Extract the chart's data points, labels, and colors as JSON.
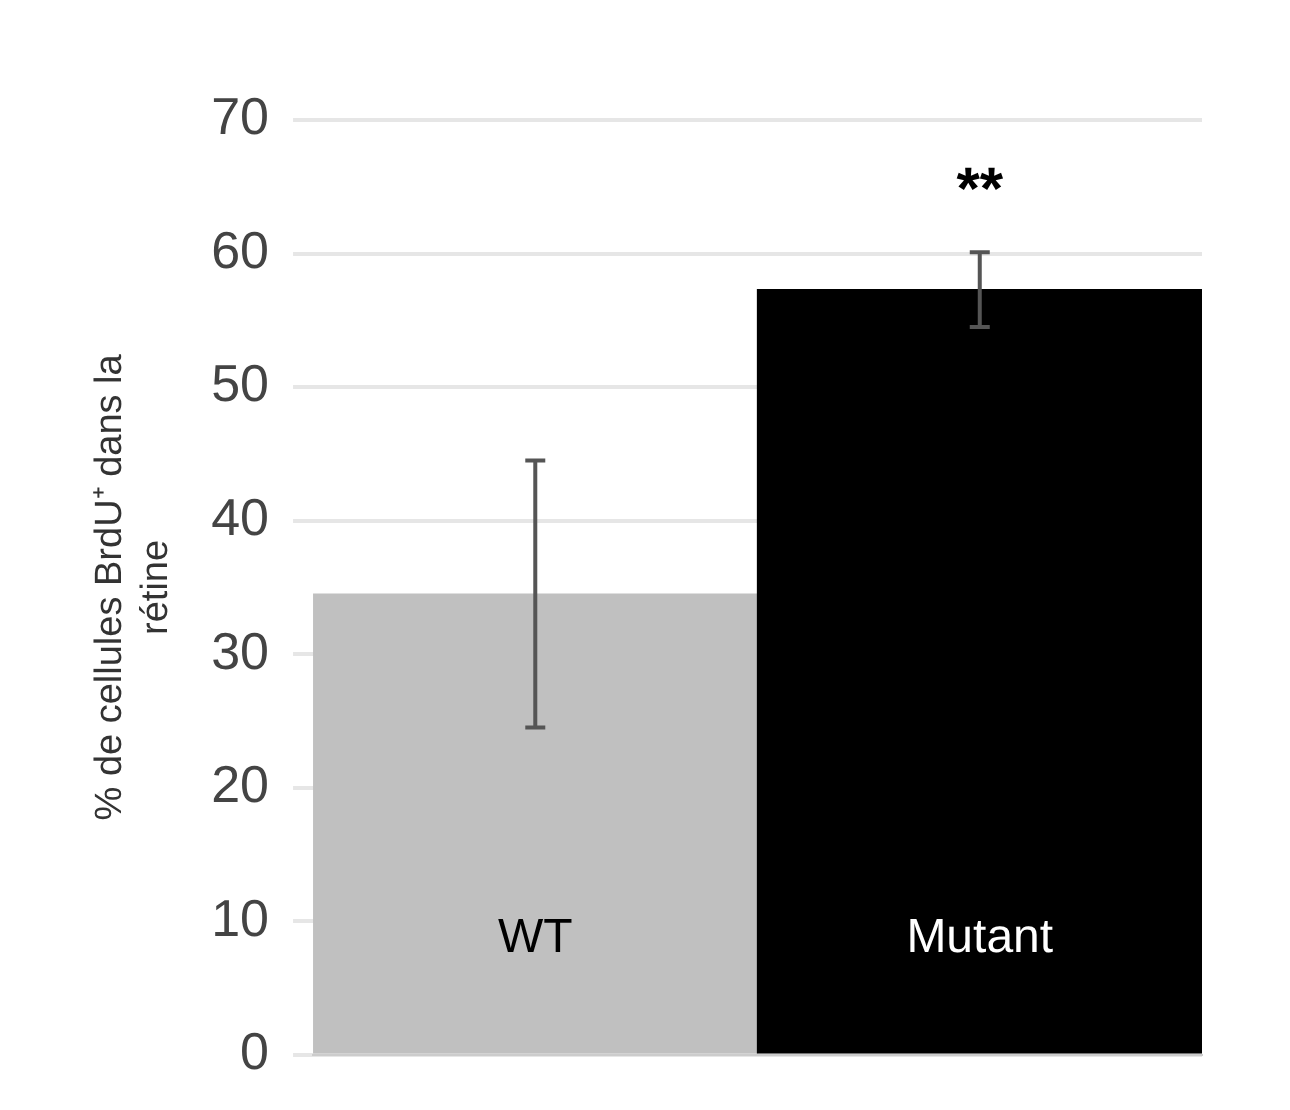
{
  "chart_data": {
    "type": "bar",
    "ylabel": "% de cellules BrdU⁺ dans la rétine",
    "categories": [
      "WT",
      "Mutant"
    ],
    "values": [
      34.5,
      57.3
    ],
    "colors": [
      "#c0c0c0",
      "#000000"
    ],
    "errors": [
      10,
      2.8
    ],
    "ylim": [
      0,
      70
    ],
    "yticks": [
      0,
      10,
      20,
      30,
      40,
      50,
      60,
      70
    ],
    "grid": "y",
    "annotations": [
      "**"
    ]
  }
}
